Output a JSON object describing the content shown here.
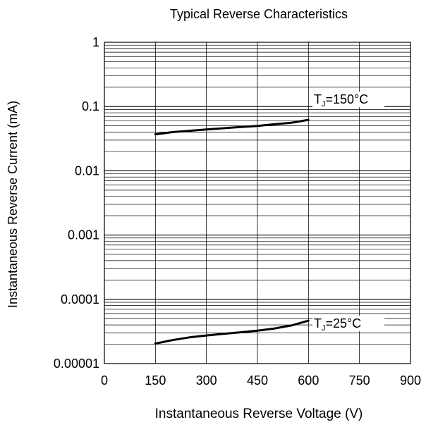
{
  "chart_data": {
    "type": "line",
    "title": "Typical Reverse Characteristics",
    "xlabel": "Instantaneous Reverse Voltage (V)",
    "ylabel": "Instantaneous Reverse Current (mA)",
    "xlim": [
      0,
      900
    ],
    "ylim": [
      1e-05,
      1
    ],
    "y_scale": "log",
    "grid": true,
    "x_ticks": [
      0,
      150,
      300,
      450,
      600,
      750,
      900
    ],
    "x_tick_labels": [
      "0",
      "150",
      "300",
      "450",
      "600",
      "750",
      "900"
    ],
    "y_ticks": [
      1e-05,
      0.0001,
      0.001,
      0.01,
      0.1,
      1
    ],
    "y_tick_labels": [
      "0.00001",
      "0.0001",
      "0.001",
      "0.01",
      "0.1",
      "1"
    ],
    "series": [
      {
        "name": "TJ=150°C",
        "label_main": "T",
        "label_sub": "J",
        "label_rest": "=150°C",
        "x": [
          150,
          200,
          250,
          300,
          350,
          400,
          450,
          500,
          550,
          600
        ],
        "values": [
          0.037,
          0.04,
          0.042,
          0.044,
          0.046,
          0.048,
          0.05,
          0.053,
          0.056,
          0.062
        ]
      },
      {
        "name": "TJ=25°C",
        "label_main": "T",
        "label_sub": "J",
        "label_rest": "=25°C",
        "x": [
          150,
          200,
          250,
          300,
          350,
          400,
          450,
          500,
          550,
          600
        ],
        "values": [
          2.05e-05,
          2.32e-05,
          2.56e-05,
          2.74e-05,
          2.91e-05,
          3.07e-05,
          3.26e-05,
          3.52e-05,
          3.92e-05,
          4.65e-05
        ]
      }
    ]
  }
}
